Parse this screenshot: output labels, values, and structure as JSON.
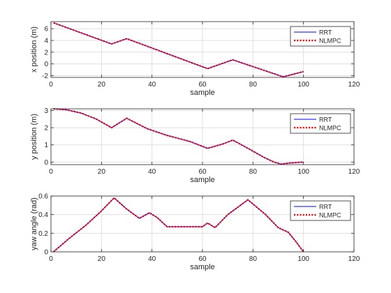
{
  "chart_data": [
    {
      "type": "line",
      "xlabel": "sample",
      "ylabel": "x position (m)",
      "xlim": [
        0,
        120
      ],
      "ylim": [
        -2.3,
        7.2
      ],
      "xticks": [
        0,
        20,
        40,
        60,
        80,
        100,
        120
      ],
      "yticks": [
        -2,
        0,
        2,
        4,
        6
      ],
      "grid": true,
      "legend_position": "top-right",
      "series": [
        {
          "name": "RRT",
          "color": "#0000ff",
          "style": "solid",
          "x": [
            1,
            24,
            30,
            62,
            72,
            92,
            100
          ],
          "y": [
            7.0,
            3.4,
            4.3,
            -0.8,
            0.7,
            -2.2,
            -1.3
          ]
        },
        {
          "name": "NLMPC",
          "color": "#ff0000",
          "style": "dotted",
          "x": [
            1,
            24,
            30,
            62,
            72,
            92,
            100
          ],
          "y": [
            7.0,
            3.4,
            4.3,
            -0.8,
            0.7,
            -2.2,
            -1.3
          ]
        }
      ]
    },
    {
      "type": "line",
      "xlabel": "sample",
      "ylabel": "y position (m)",
      "xlim": [
        0,
        120
      ],
      "ylim": [
        -0.15,
        3.1
      ],
      "xticks": [
        0,
        20,
        40,
        60,
        80,
        100,
        120
      ],
      "yticks": [
        0,
        1,
        2,
        3
      ],
      "grid": true,
      "legend_position": "top-right",
      "series": [
        {
          "name": "RRT",
          "color": "#0000ff",
          "style": "solid",
          "x": [
            1,
            6,
            12,
            18,
            24,
            30,
            38,
            46,
            55,
            62,
            68,
            72,
            78,
            84,
            88,
            91,
            95,
            100
          ],
          "y": [
            3.1,
            3.05,
            2.85,
            2.5,
            2.0,
            2.55,
            1.95,
            1.55,
            1.2,
            0.8,
            1.05,
            1.28,
            0.8,
            0.3,
            0.02,
            -0.12,
            -0.05,
            0.0
          ],
          "points": true
        },
        {
          "name": "NLMPC",
          "color": "#ff0000",
          "style": "dotted",
          "x": [
            1,
            6,
            12,
            18,
            24,
            30,
            38,
            46,
            55,
            62,
            68,
            72,
            78,
            84,
            88,
            91,
            95,
            100
          ],
          "y": [
            3.1,
            3.05,
            2.85,
            2.5,
            2.0,
            2.55,
            1.95,
            1.55,
            1.2,
            0.8,
            1.05,
            1.28,
            0.8,
            0.3,
            0.02,
            -0.12,
            -0.05,
            0.0
          ]
        }
      ]
    },
    {
      "type": "line",
      "xlabel": "sample",
      "ylabel": "yaw angle (rad)",
      "xlim": [
        0,
        120
      ],
      "ylim": [
        0,
        0.6
      ],
      "xticks": [
        0,
        20,
        40,
        60,
        80,
        100,
        120
      ],
      "yticks": [
        0,
        0.2,
        0.4,
        0.6
      ],
      "grid": true,
      "legend_position": "top-right",
      "series": [
        {
          "name": "RRT",
          "color": "#0000ff",
          "style": "solid",
          "x": [
            1,
            7,
            14,
            20,
            25,
            30,
            35,
            39,
            42,
            46,
            55,
            60,
            62,
            65,
            70,
            78,
            85,
            90,
            94,
            97,
            100
          ],
          "y": [
            0.0,
            0.14,
            0.29,
            0.44,
            0.58,
            0.46,
            0.36,
            0.42,
            0.37,
            0.27,
            0.27,
            0.27,
            0.31,
            0.26,
            0.4,
            0.56,
            0.4,
            0.26,
            0.21,
            0.11,
            0.0
          ]
        },
        {
          "name": "NLMPC",
          "color": "#ff0000",
          "style": "dotted",
          "x": [
            1,
            7,
            14,
            20,
            25,
            30,
            35,
            39,
            42,
            46,
            55,
            60,
            62,
            65,
            70,
            78,
            85,
            90,
            94,
            97,
            100
          ],
          "y": [
            0.0,
            0.14,
            0.29,
            0.44,
            0.58,
            0.46,
            0.36,
            0.42,
            0.37,
            0.27,
            0.27,
            0.27,
            0.31,
            0.26,
            0.4,
            0.56,
            0.4,
            0.26,
            0.21,
            0.11,
            0.0
          ]
        }
      ]
    }
  ]
}
